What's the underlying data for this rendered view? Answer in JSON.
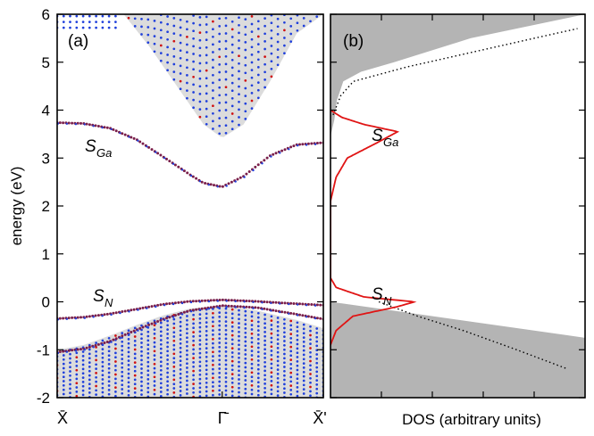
{
  "chart_data": [
    {
      "panel_label": "(a)",
      "type": "scatter",
      "description": "band structure along X̄ - Γ̄ - X̄'",
      "ylabel": "energy (eV)",
      "ylim": [
        -2,
        6
      ],
      "yticks": [
        "-2",
        "-1",
        "0",
        "1",
        "2",
        "3",
        "4",
        "5",
        "6"
      ],
      "xticks": [
        "X̄",
        "Γ̄",
        "X̄'"
      ],
      "k_points": [
        0,
        0.62,
        1.0
      ],
      "annotations": [
        {
          "text": "S",
          "sub": "Ga",
          "k": 0.08,
          "energy": 3.3
        },
        {
          "text": "S",
          "sub": "N",
          "k": 0.1,
          "energy": 0.0
        }
      ],
      "series": [
        {
          "name": "S_Ga surface band",
          "k": [
            0.0,
            0.1,
            0.2,
            0.3,
            0.4,
            0.5,
            0.55,
            0.62,
            0.7,
            0.8,
            0.9,
            1.0
          ],
          "energy": [
            3.74,
            3.72,
            3.62,
            3.38,
            3.02,
            2.65,
            2.48,
            2.4,
            2.62,
            3.05,
            3.28,
            3.32
          ]
        },
        {
          "name": "S_N surface band",
          "k": [
            0.0,
            0.1,
            0.2,
            0.3,
            0.4,
            0.5,
            0.62,
            0.75,
            0.9,
            1.0
          ],
          "energy": [
            -0.35,
            -0.32,
            -0.25,
            -0.15,
            -0.05,
            0.01,
            0.04,
            0.01,
            -0.04,
            -0.07
          ]
        },
        {
          "name": "secondary surface band",
          "k": [
            0.0,
            0.1,
            0.2,
            0.3,
            0.4,
            0.5,
            0.62,
            0.75,
            0.9,
            1.0
          ],
          "energy": [
            -1.05,
            -0.98,
            -0.82,
            -0.58,
            -0.36,
            -0.18,
            -0.08,
            -0.12,
            -0.26,
            -0.36
          ]
        },
        {
          "name": "projected valence band edge",
          "k": [
            0.0,
            0.1,
            0.2,
            0.3,
            0.4,
            0.5,
            0.62,
            0.75,
            0.9,
            1.0
          ],
          "energy": [
            -1.0,
            -0.9,
            -0.7,
            -0.48,
            -0.28,
            -0.14,
            -0.08,
            -0.18,
            -0.38,
            -0.55
          ]
        },
        {
          "name": "projected conduction band edge",
          "k": [
            0.25,
            0.35,
            0.45,
            0.55,
            0.62,
            0.7,
            0.8,
            0.9,
            1.0
          ],
          "energy": [
            6.0,
            5.3,
            4.5,
            3.7,
            3.42,
            3.7,
            4.6,
            5.6,
            6.0
          ]
        }
      ],
      "colors": {
        "bulk_points": "#1f3fdc",
        "surface_points": "#d01010",
        "projected_region": "#dcdcdc"
      }
    },
    {
      "panel_label": "(b)",
      "type": "area",
      "description": "density of states, energy on the shared vertical axis",
      "xlabel": "DOS (arbitrary units)",
      "ylim": [
        -2,
        6
      ],
      "annotations": [
        {
          "text": "S",
          "sub": "Ga",
          "energy": 3.45
        },
        {
          "text": "S",
          "sub": "N",
          "energy": 0.0
        }
      ],
      "series": [
        {
          "name": "bulk DOS (grey)",
          "valence": {
            "energy": [
              -2.0,
              -1.5,
              -1.0,
              -0.5,
              -0.1,
              0.0
            ],
            "dos": [
              1.0,
              0.86,
              0.7,
              0.48,
              0.18,
              0.0
            ]
          },
          "conduction": {
            "energy": [
              3.45,
              3.8,
              4.2,
              4.6,
              4.8,
              5.0,
              5.5,
              6.0
            ],
            "dos": [
              0.0,
              0.015,
              0.025,
              0.05,
              0.12,
              0.25,
              0.55,
              1.0
            ]
          }
        },
        {
          "name": "surface DOS (red)",
          "energy": [
            -0.9,
            -0.6,
            -0.3,
            -0.1,
            0.0,
            0.1,
            0.3,
            0.5,
            2.1,
            2.6,
            3.0,
            3.3,
            3.55,
            3.7,
            3.85,
            4.0
          ],
          "dos": [
            0.0,
            0.01,
            0.04,
            0.12,
            0.15,
            0.06,
            0.01,
            0.0,
            0.0,
            0.01,
            0.03,
            0.08,
            0.12,
            0.06,
            0.02,
            0.0
          ]
        },
        {
          "name": "total DOS (dotted)",
          "valence": {
            "energy": [
              0.0,
              -0.3,
              -0.6,
              -1.0,
              -1.4
            ],
            "dos": [
              0.2,
              0.36,
              0.55,
              0.77,
              0.98
            ]
          },
          "conduction": {
            "energy": [
              3.9,
              4.3,
              4.6,
              4.9,
              5.2,
              5.5,
              5.7
            ],
            "dos": [
              0.01,
              0.04,
              0.09,
              0.3,
              0.55,
              0.8,
              0.97
            ]
          }
        }
      ],
      "colors": {
        "bulk_fill": "#b4b4b4",
        "surface_line": "#e01414",
        "total_line": "#000000"
      }
    }
  ]
}
